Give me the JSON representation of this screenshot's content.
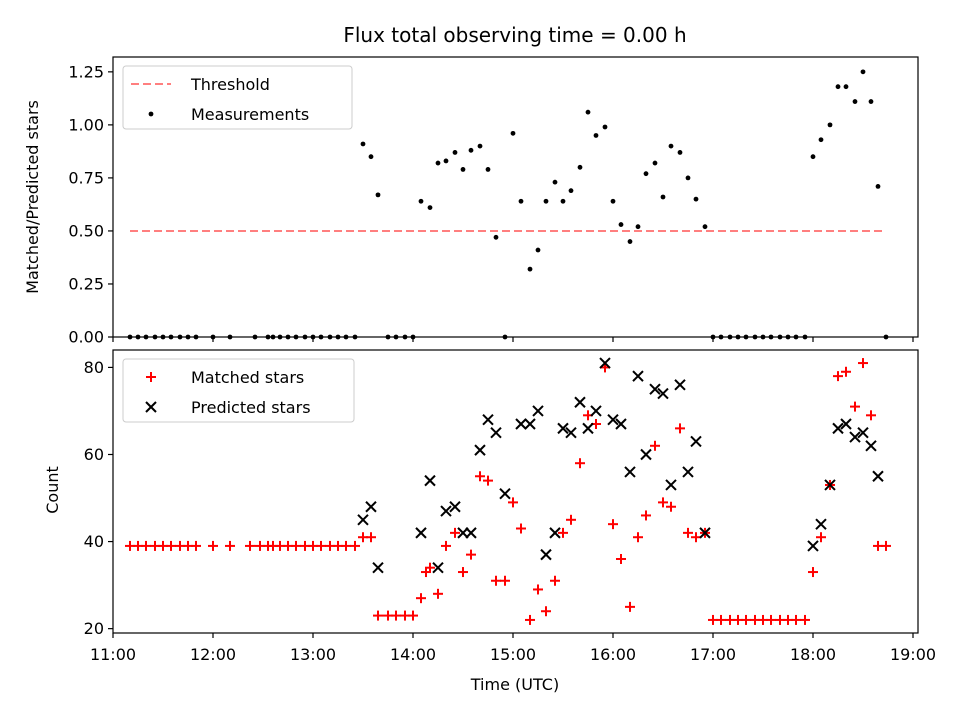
{
  "chart_data": [
    {
      "type": "scatter",
      "title": "Flux total observing time = 0.00 h",
      "xlabel": "",
      "ylabel": "Matched/Predicted stars",
      "ylim": [
        0.0,
        1.32
      ],
      "yticks": [
        "0.00",
        "0.25",
        "0.50",
        "0.75",
        "1.00",
        "1.25"
      ],
      "xlim": [
        11.0,
        19.05
      ],
      "grid": false,
      "legend_position": "top-left",
      "series": [
        {
          "name": "Threshold",
          "style": "dashed-line",
          "color": "#ff7f7f",
          "x": [
            11.17,
            18.72
          ],
          "y": [
            0.5,
            0.5
          ]
        },
        {
          "name": "Measurements",
          "style": "dot",
          "color": "#000000",
          "x": [
            11.17,
            11.25,
            11.33,
            11.42,
            11.5,
            11.58,
            11.67,
            11.75,
            11.83,
            12.0,
            12.17,
            12.42,
            12.55,
            12.6,
            12.67,
            12.75,
            12.83,
            12.92,
            13.0,
            13.08,
            13.17,
            13.25,
            13.33,
            13.42,
            13.5,
            13.58,
            13.65,
            13.75,
            13.83,
            13.92,
            14.0,
            14.08,
            14.17,
            14.25,
            14.33,
            14.42,
            14.5,
            14.58,
            14.67,
            14.75,
            14.83,
            14.92,
            15.0,
            15.08,
            15.17,
            15.25,
            15.33,
            15.42,
            15.5,
            15.58,
            15.67,
            15.75,
            15.83,
            15.92,
            16.0,
            16.08,
            16.17,
            16.25,
            16.33,
            16.42,
            16.5,
            16.58,
            16.67,
            16.75,
            16.83,
            16.92,
            17.0,
            17.08,
            17.17,
            17.25,
            17.33,
            17.42,
            17.5,
            17.58,
            17.67,
            17.75,
            17.83,
            17.92,
            18.0,
            18.08,
            18.17,
            18.25,
            18.33,
            18.42,
            18.5,
            18.58,
            18.65,
            18.73
          ],
          "y": [
            0,
            0,
            0,
            0,
            0,
            0,
            0,
            0,
            0,
            0,
            0,
            0,
            0,
            0,
            0,
            0,
            0,
            0,
            0,
            0,
            0,
            0,
            0,
            0,
            0.91,
            0.85,
            0.67,
            0,
            0,
            0,
            0,
            0.64,
            0.61,
            0.82,
            0.83,
            0.87,
            0.79,
            0.88,
            0.9,
            0.79,
            0.47,
            0,
            0.96,
            0.64,
            0.32,
            0.41,
            0.64,
            0.73,
            0.64,
            0.69,
            0.8,
            1.06,
            0.95,
            0.99,
            0.64,
            0.53,
            0.45,
            0.52,
            0.77,
            0.82,
            0.66,
            0.9,
            0.87,
            0.75,
            0.65,
            0.52,
            0,
            0,
            0,
            0,
            0,
            0,
            0,
            0,
            0,
            0,
            0,
            0,
            0.85,
            0.93,
            1.0,
            1.18,
            1.18,
            1.11,
            1.25,
            1.11,
            0.71,
            0
          ]
        }
      ]
    },
    {
      "type": "scatter",
      "title": "",
      "xlabel": "Time (UTC)",
      "ylabel": "Count",
      "ylim": [
        19,
        84
      ],
      "yticks": [
        "20",
        "40",
        "60",
        "80"
      ],
      "xlim": [
        11.0,
        19.05
      ],
      "xticks": [
        "11:00",
        "12:00",
        "13:00",
        "14:00",
        "15:00",
        "16:00",
        "17:00",
        "18:00",
        "19:00"
      ],
      "grid": false,
      "legend_position": "top-left",
      "series": [
        {
          "name": "Matched stars",
          "style": "plus",
          "color": "#ff0000",
          "x": [
            11.17,
            11.25,
            11.33,
            11.42,
            11.5,
            11.58,
            11.67,
            11.75,
            11.83,
            12.0,
            12.17,
            12.37,
            12.47,
            12.55,
            12.6,
            12.67,
            12.75,
            12.83,
            12.92,
            13.0,
            13.08,
            13.17,
            13.25,
            13.33,
            13.42,
            13.5,
            13.58,
            13.65,
            13.75,
            13.83,
            13.92,
            14.0,
            14.08,
            14.13,
            14.17,
            14.25,
            14.33,
            14.42,
            14.5,
            14.58,
            14.67,
            14.75,
            14.83,
            14.92,
            15.0,
            15.08,
            15.17,
            15.25,
            15.33,
            15.42,
            15.5,
            15.58,
            15.67,
            15.75,
            15.83,
            15.92,
            16.0,
            16.08,
            16.17,
            16.25,
            16.33,
            16.42,
            16.5,
            16.58,
            16.67,
            16.75,
            16.83,
            16.92,
            17.0,
            17.08,
            17.17,
            17.25,
            17.33,
            17.42,
            17.5,
            17.58,
            17.67,
            17.75,
            17.83,
            17.92,
            18.0,
            18.08,
            18.17,
            18.25,
            18.33,
            18.42,
            18.5,
            18.58,
            18.65,
            18.73
          ],
          "y": [
            39,
            39,
            39,
            39,
            39,
            39,
            39,
            39,
            39,
            39,
            39,
            39,
            39,
            39,
            39,
            39,
            39,
            39,
            39,
            39,
            39,
            39,
            39,
            39,
            39,
            41,
            41,
            23,
            23,
            23,
            23,
            23,
            27,
            33,
            34,
            28,
            39,
            42,
            33,
            37,
            55,
            54,
            31,
            31,
            49,
            43,
            22,
            29,
            24,
            31,
            42,
            45,
            58,
            69,
            67,
            80,
            44,
            36,
            25,
            41,
            46,
            62,
            49,
            48,
            66,
            42,
            41,
            42,
            22,
            22,
            22,
            22,
            22,
            22,
            22,
            22,
            22,
            22,
            22,
            22,
            33,
            41,
            53,
            78,
            79,
            71,
            81,
            69,
            39,
            39
          ]
        },
        {
          "name": "Predicted stars",
          "style": "x",
          "color": "#000000",
          "x": [
            13.5,
            13.58,
            13.65,
            14.08,
            14.17,
            14.25,
            14.33,
            14.42,
            14.5,
            14.58,
            14.67,
            14.75,
            14.83,
            14.92,
            15.08,
            15.17,
            15.25,
            15.33,
            15.42,
            15.5,
            15.58,
            15.67,
            15.75,
            15.83,
            15.92,
            16.0,
            16.08,
            16.17,
            16.25,
            16.33,
            16.42,
            16.5,
            16.58,
            16.67,
            16.75,
            16.83,
            16.92,
            18.0,
            18.08,
            18.17,
            18.25,
            18.33,
            18.42,
            18.5,
            18.58,
            18.65
          ],
          "y": [
            45,
            48,
            34,
            42,
            54,
            34,
            47,
            48,
            42,
            42,
            61,
            68,
            65,
            51,
            67,
            67,
            70,
            37,
            42,
            66,
            65,
            72,
            66,
            70,
            81,
            68,
            67,
            56,
            78,
            60,
            75,
            74,
            53,
            76,
            56,
            63,
            42,
            39,
            44,
            53,
            66,
            67,
            64,
            65,
            62,
            55
          ]
        }
      ]
    }
  ]
}
